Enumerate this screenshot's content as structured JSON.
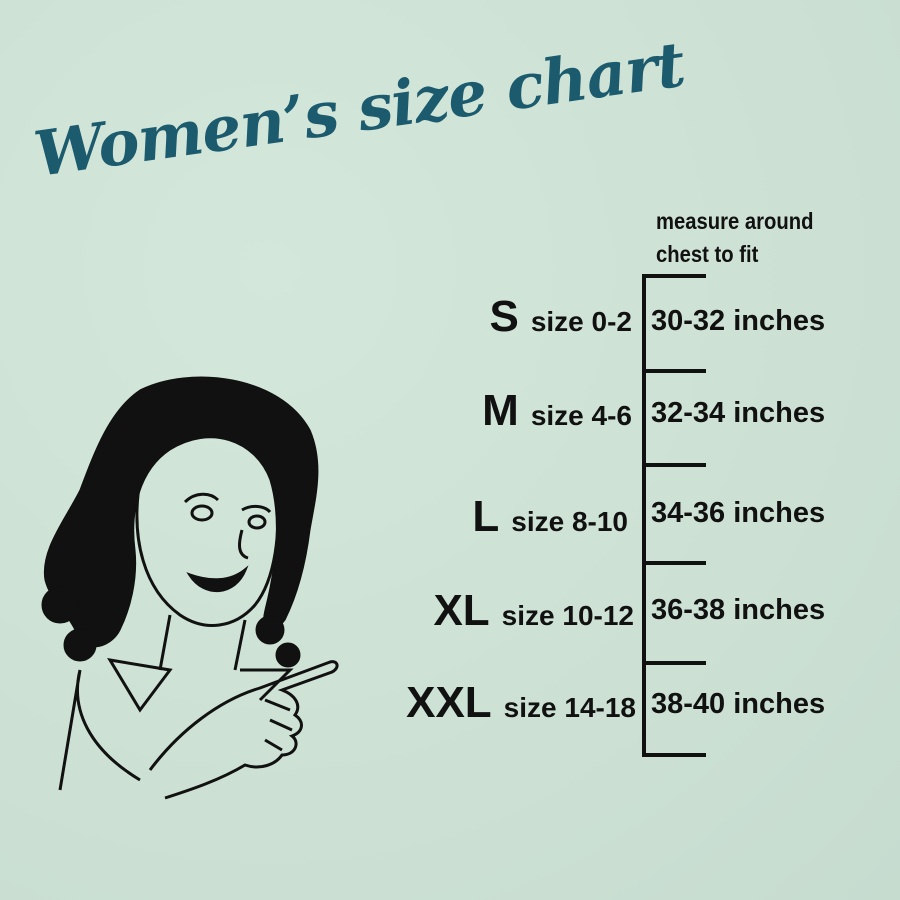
{
  "title": "Women’s size chart",
  "header": {
    "line1": "measure around",
    "line2": "chest to fit"
  },
  "rows": [
    {
      "letter": "S",
      "size": "size 0-2",
      "chest": "30-32 inches"
    },
    {
      "letter": "M",
      "size": "size 4-6",
      "chest": "32-34 inches"
    },
    {
      "letter": "L",
      "size": "size 8-10",
      "chest": "34-36 inches"
    },
    {
      "letter": "XL",
      "size": "size 10-12",
      "chest": "36-38 inches"
    },
    {
      "letter": "XXL",
      "size": "size 14-18",
      "chest": "38-40 inches"
    }
  ],
  "colors": {
    "background": "#cfe3d7",
    "title": "#1c5a6e",
    "text": "#111111"
  }
}
